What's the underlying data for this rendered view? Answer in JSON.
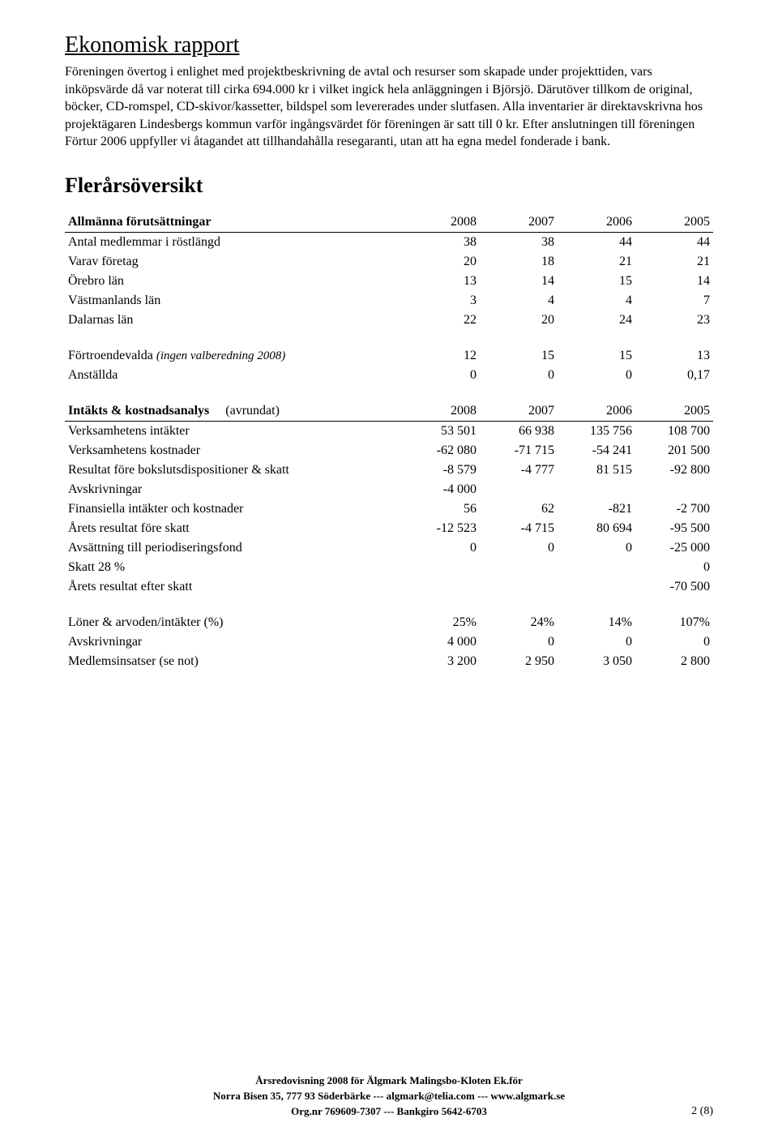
{
  "title": "Ekonomisk rapport",
  "body_text": "Föreningen övertog i enlighet med projektbeskrivning de avtal och resurser som skapade under projekttiden, vars inköpsvärde då var noterat till cirka 694.000 kr i vilket ingick hela anläggningen i Björsjö. Därutöver tillkom de original, böcker, CD-romspel, CD-skivor/kassetter, bildspel som levererades under slutfasen. Alla inventarier är direktavskrivna hos projektägaren Lindesbergs kommun varför ingångsvärdet för föreningen är satt till 0 kr. Efter anslutningen till föreningen Förtur 2006 uppfyller vi åtagandet att tillhandahålla resegaranti, utan att ha egna medel fonderade i bank.",
  "section_heading": "Flerårsöversikt",
  "t1": {
    "header_label": "Allmänna förutsättningar",
    "years": [
      "2008",
      "2007",
      "2006",
      "2005"
    ],
    "rows": [
      {
        "label": "Antal medlemmar i röstlängd",
        "v": [
          "38",
          "38",
          "44",
          "44"
        ]
      },
      {
        "label": "Varav företag",
        "v": [
          "20",
          "18",
          "21",
          "21"
        ]
      },
      {
        "label": "Örebro län",
        "v": [
          "13",
          "14",
          "15",
          "14"
        ]
      },
      {
        "label": "Västmanlands län",
        "v": [
          "3",
          "4",
          "4",
          "7"
        ]
      },
      {
        "label": "Dalarnas län",
        "v": [
          "22",
          "20",
          "24",
          "23"
        ]
      }
    ]
  },
  "t2": {
    "rows": [
      {
        "label_pre": "Förtroendevalda ",
        "label_italic": "(ingen valberedning 2008)",
        "v": [
          "12",
          "15",
          "15",
          "13"
        ]
      },
      {
        "label": "Anställda",
        "v": [
          "0",
          "0",
          "0",
          "0,17"
        ]
      }
    ]
  },
  "t3": {
    "header_label_bold": "Intäkts & kostnadsanalys",
    "header_label_sub": "(avrundat)",
    "years": [
      "2008",
      "2007",
      "2006",
      "2005"
    ],
    "rows": [
      {
        "label": "Verksamhetens intäkter",
        "v": [
          "53 501",
          "66 938",
          "135 756",
          "108 700"
        ]
      },
      {
        "label": "Verksamhetens kostnader",
        "v": [
          "-62 080",
          "-71 715",
          "-54 241",
          "201 500"
        ]
      },
      {
        "label": "Resultat före bokslutsdispositioner & skatt",
        "v": [
          "-8 579",
          "-4 777",
          "81 515",
          "-92 800"
        ]
      },
      {
        "label": "Avskrivningar",
        "v": [
          "-4 000",
          "",
          "",
          ""
        ]
      },
      {
        "label": "Finansiella intäkter och kostnader",
        "v": [
          "56",
          "62",
          "-821",
          "-2 700"
        ]
      },
      {
        "label": "Årets resultat före skatt",
        "v": [
          "-12 523",
          "-4 715",
          "80 694",
          "-95 500"
        ]
      },
      {
        "label": "Avsättning till periodiseringsfond",
        "v": [
          "0",
          "0",
          "0",
          "-25 000"
        ]
      },
      {
        "label": "Skatt 28 %",
        "v": [
          "",
          "",
          "",
          "0"
        ]
      },
      {
        "label": "Årets resultat efter skatt",
        "v": [
          "",
          "",
          "",
          "-70 500"
        ]
      }
    ]
  },
  "t4": {
    "rows": [
      {
        "label": "Löner & arvoden/intäkter (%)",
        "v": [
          "25%",
          "24%",
          "14%",
          "107%"
        ]
      },
      {
        "label": "Avskrivningar",
        "v": [
          "4 000",
          "0",
          "0",
          "0"
        ]
      },
      {
        "label": "Medlemsinsatser (se not)",
        "v": [
          "3 200",
          "2 950",
          "3 050",
          "2 800"
        ]
      }
    ]
  },
  "footer": {
    "line1": "Årsredovisning 2008 för Älgmark Malingsbo-Kloten Ek.för",
    "line2": "Norra Bisen 35, 777 93 Söderbärke --- algmark@telia.com --- www.algmark.se",
    "line3": "Org.nr 769609-7307 --- Bankgiro 5642-6703",
    "page": "2 (8)"
  }
}
